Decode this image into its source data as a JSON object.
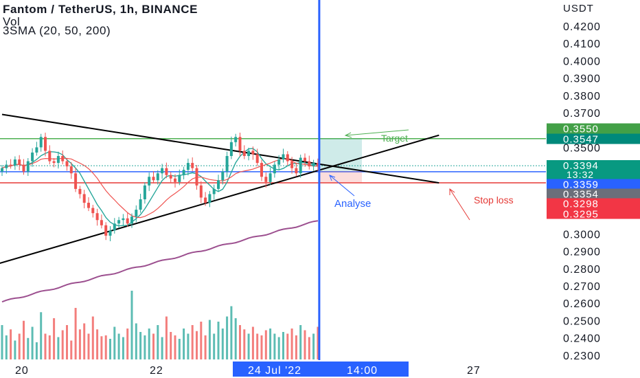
{
  "header": {
    "title": "Fantom / TetherUS, 1h, BINANCE",
    "vol_label": "Vol",
    "sma_label": "3SMA (20, 50, 200)"
  },
  "axis": {
    "currency": "USDT"
  },
  "colors": {
    "candle_up": "#26a69a",
    "candle_down": "#ef5350",
    "sma20": "#26a69a",
    "sma50": "#ef5350",
    "sma200": "#9c4f8f",
    "vertical_line": "#2962ff"
  },
  "annotations": {
    "target": "Target",
    "analyse": "Analyse",
    "stop_loss": "Stop loss"
  },
  "price_badges": {
    "green_top": "0.3550",
    "teal_second": "0.3547",
    "last_price": "0.3394",
    "countdown": "13:32",
    "blue": "0.3359",
    "gray": "0.3354",
    "red_first": "0.3298",
    "red_second": "0.3295"
  },
  "chart_data": {
    "type": "candlestick",
    "title": "Fantom / TetherUS, 1h, BINANCE",
    "y_axis": {
      "unit": "USDT",
      "ticks": [
        0.23,
        0.24,
        0.25,
        0.26,
        0.27,
        0.28,
        0.29,
        0.3,
        0.35,
        0.37,
        0.38,
        0.39,
        0.4,
        0.41,
        0.42
      ],
      "ylim": [
        0.226,
        0.431
      ]
    },
    "x_axis": {
      "ticks": [
        "20",
        "22",
        "24 Jul '22",
        "14:00",
        "27"
      ],
      "highlighted": [
        "24 Jul '22",
        "14:00"
      ]
    },
    "closes": [
      0.338,
      0.34,
      0.3395,
      0.343,
      0.34,
      0.336,
      0.342,
      0.347,
      0.35,
      0.356,
      0.348,
      0.342,
      0.341,
      0.345,
      0.342,
      0.339,
      0.335,
      0.326,
      0.323,
      0.318,
      0.315,
      0.312,
      0.308,
      0.305,
      0.299,
      0.302,
      0.306,
      0.308,
      0.309,
      0.306,
      0.31,
      0.314,
      0.32,
      0.328,
      0.333,
      0.331,
      0.335,
      0.338,
      0.334,
      0.332,
      0.33,
      0.334,
      0.337,
      0.341,
      0.338,
      0.328,
      0.321,
      0.318,
      0.323,
      0.326,
      0.331,
      0.336,
      0.345,
      0.353,
      0.356,
      0.348,
      0.345,
      0.348,
      0.346,
      0.341,
      0.333,
      0.33,
      0.335,
      0.34,
      0.343,
      0.346,
      0.342,
      0.338,
      0.335,
      0.344,
      0.342,
      0.339,
      0.341,
      0.3394
    ],
    "volume": [
      40,
      28,
      35,
      22,
      30,
      45,
      25,
      38,
      20,
      55,
      30,
      28,
      48,
      26,
      34,
      40,
      22,
      60,
      35,
      42,
      30,
      50,
      35,
      27,
      28,
      24,
      38,
      30,
      26,
      36,
      80,
      42,
      32,
      28,
      36,
      30,
      40,
      26,
      50,
      32,
      28,
      24,
      36,
      30,
      40,
      33,
      44,
      28,
      46,
      30,
      44,
      36,
      50,
      62,
      48,
      40,
      35,
      30,
      38,
      30,
      28,
      34,
      36,
      30,
      26,
      32,
      30,
      36,
      28,
      40,
      34,
      26,
      30,
      38
    ],
    "series": [
      {
        "name": "20",
        "role": "sma20"
      },
      {
        "name": "50",
        "role": "sma50"
      },
      {
        "name": "200",
        "role": "sma200"
      }
    ],
    "horizontal_levels": {
      "target": 0.355,
      "entry": 0.3359,
      "stop": 0.3295,
      "last": 0.3394
    },
    "trendlines": {
      "descending": {
        "from": [
          0,
          0.369
        ],
        "to": [
          101,
          0.3295
        ]
      },
      "ascending": {
        "from": [
          -2,
          0.282
        ],
        "to": [
          101,
          0.357
        ]
      }
    },
    "grid": false,
    "legend": "top-left"
  }
}
